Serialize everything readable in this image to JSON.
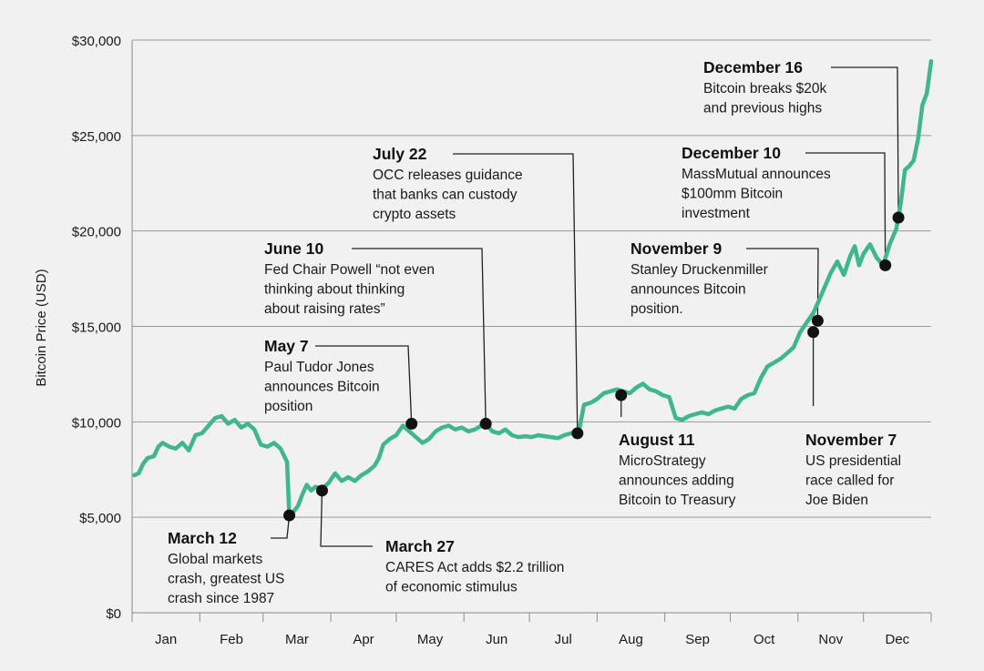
{
  "chart_data": {
    "type": "line",
    "ylabel": "Bitcoin Price (USD)",
    "ylim": [
      0,
      30000
    ],
    "yticks": [
      0,
      5000,
      10000,
      15000,
      20000,
      25000,
      30000
    ],
    "ytick_labels": [
      "$0",
      "$5,000",
      "$10,000",
      "$15,000",
      "$20,000",
      "$25,000",
      "$30,000"
    ],
    "xtick_labels": [
      "Jan",
      "Feb",
      "Mar",
      "Apr",
      "May",
      "Jun",
      "Jul",
      "Aug",
      "Sep",
      "Oct",
      "Nov",
      "Dec"
    ],
    "grid": true,
    "line_color": "#3fb68b",
    "series": [
      {
        "values": [
          [
            1,
            7200
          ],
          [
            3,
            7300
          ],
          [
            5,
            7800
          ],
          [
            7,
            8100
          ],
          [
            10,
            8200
          ],
          [
            12,
            8700
          ],
          [
            14,
            8900
          ],
          [
            17,
            8700
          ],
          [
            20,
            8600
          ],
          [
            23,
            8900
          ],
          [
            26,
            8500
          ],
          [
            29,
            9300
          ],
          [
            32,
            9400
          ],
          [
            35,
            9800
          ],
          [
            38,
            10200
          ],
          [
            41,
            10300
          ],
          [
            44,
            9900
          ],
          [
            47,
            10100
          ],
          [
            50,
            9700
          ],
          [
            53,
            9900
          ],
          [
            56,
            9600
          ],
          [
            59,
            8800
          ],
          [
            62,
            8700
          ],
          [
            65,
            8900
          ],
          [
            68,
            8600
          ],
          [
            71,
            7900
          ],
          [
            72,
            5100
          ],
          [
            74,
            5300
          ],
          [
            76,
            5600
          ],
          [
            78,
            6200
          ],
          [
            80,
            6700
          ],
          [
            82,
            6400
          ],
          [
            84,
            6600
          ],
          [
            87,
            6500
          ],
          [
            90,
            6800
          ],
          [
            93,
            7300
          ],
          [
            96,
            6900
          ],
          [
            99,
            7100
          ],
          [
            102,
            6900
          ],
          [
            105,
            7200
          ],
          [
            108,
            7400
          ],
          [
            111,
            7700
          ],
          [
            113,
            8100
          ],
          [
            115,
            8800
          ],
          [
            118,
            9100
          ],
          [
            121,
            9300
          ],
          [
            124,
            9800
          ],
          [
            127,
            9500
          ],
          [
            130,
            9200
          ],
          [
            133,
            8900
          ],
          [
            136,
            9100
          ],
          [
            139,
            9500
          ],
          [
            142,
            9700
          ],
          [
            145,
            9800
          ],
          [
            148,
            9600
          ],
          [
            151,
            9700
          ],
          [
            154,
            9500
          ],
          [
            157,
            9600
          ],
          [
            160,
            9800
          ],
          [
            162,
            9900
          ],
          [
            165,
            9500
          ],
          [
            168,
            9400
          ],
          [
            171,
            9600
          ],
          [
            174,
            9300
          ],
          [
            177,
            9200
          ],
          [
            180,
            9250
          ],
          [
            183,
            9200
          ],
          [
            186,
            9300
          ],
          [
            189,
            9250
          ],
          [
            192,
            9200
          ],
          [
            195,
            9150
          ],
          [
            198,
            9300
          ],
          [
            201,
            9400
          ],
          [
            204,
            9500
          ],
          [
            205,
            9700
          ],
          [
            207,
            10900
          ],
          [
            210,
            11000
          ],
          [
            213,
            11200
          ],
          [
            216,
            11500
          ],
          [
            219,
            11600
          ],
          [
            222,
            11700
          ],
          [
            225,
            11600
          ],
          [
            228,
            11500
          ],
          [
            231,
            11800
          ],
          [
            234,
            12000
          ],
          [
            237,
            11700
          ],
          [
            240,
            11600
          ],
          [
            243,
            11400
          ],
          [
            246,
            11300
          ],
          [
            249,
            10200
          ],
          [
            252,
            10100
          ],
          [
            255,
            10300
          ],
          [
            258,
            10400
          ],
          [
            261,
            10500
          ],
          [
            264,
            10400
          ],
          [
            267,
            10600
          ],
          [
            270,
            10700
          ],
          [
            273,
            10800
          ],
          [
            276,
            10700
          ],
          [
            279,
            11200
          ],
          [
            282,
            11400
          ],
          [
            285,
            11500
          ],
          [
            288,
            12300
          ],
          [
            291,
            12900
          ],
          [
            294,
            13100
          ],
          [
            297,
            13300
          ],
          [
            300,
            13600
          ],
          [
            303,
            13900
          ],
          [
            306,
            14700
          ],
          [
            309,
            15200
          ],
          [
            312,
            15700
          ],
          [
            314,
            16200
          ],
          [
            317,
            17000
          ],
          [
            320,
            17800
          ],
          [
            323,
            18400
          ],
          [
            326,
            17700
          ],
          [
            329,
            18700
          ],
          [
            331,
            19200
          ],
          [
            333,
            18200
          ],
          [
            335,
            18800
          ],
          [
            338,
            19300
          ],
          [
            341,
            18600
          ],
          [
            344,
            18200
          ],
          [
            347,
            19300
          ],
          [
            350,
            20100
          ],
          [
            352,
            21400
          ],
          [
            354,
            23200
          ],
          [
            356,
            23400
          ],
          [
            358,
            23700
          ],
          [
            360,
            24800
          ],
          [
            362,
            26600
          ],
          [
            364,
            27200
          ],
          [
            366,
            28900
          ]
        ]
      }
    ]
  },
  "annotations": [
    {
      "key": "march12",
      "title": "March 12",
      "lines": [
        "Global markets",
        "crash, greatest US",
        "crash since 1987"
      ],
      "day": 72,
      "price": 5100
    },
    {
      "key": "march27",
      "title": "March 27",
      "lines": [
        "CARES Act adds $2.2 trillion",
        "of economic stimulus"
      ],
      "day": 87,
      "price": 6400
    },
    {
      "key": "may7",
      "title": "May 7",
      "lines": [
        "Paul Tudor Jones",
        "announces Bitcoin",
        "position"
      ],
      "day": 128,
      "price": 9900
    },
    {
      "key": "june10",
      "title": "June 10",
      "lines": [
        "Fed Chair Powell “not even",
        "thinking about thinking",
        "about raising rates”"
      ],
      "day": 162,
      "price": 9900
    },
    {
      "key": "july22",
      "title": "July 22",
      "lines": [
        "OCC releases guidance",
        "that banks can custody",
        "crypto assets"
      ],
      "day": 204,
      "price": 9400
    },
    {
      "key": "august11",
      "title": "August 11",
      "lines": [
        "MicroStrategy",
        "announces adding",
        "Bitcoin to Treasury"
      ],
      "day": 224,
      "price": 11400
    },
    {
      "key": "november7",
      "title": "November 7",
      "lines": [
        "US presidential",
        "race called for",
        "Joe Biden"
      ],
      "day": 312,
      "price": 14700
    },
    {
      "key": "november9",
      "title": "November 9",
      "lines": [
        "Stanley Druckenmiller",
        "announces Bitcoin",
        "position."
      ],
      "day": 314,
      "price": 15300
    },
    {
      "key": "december10",
      "title": "December 10",
      "lines": [
        "MassMutual announces",
        "$100mm Bitcoin",
        "investment"
      ],
      "day": 345,
      "price": 18200
    },
    {
      "key": "december16",
      "title": "December 16",
      "lines": [
        "Bitcoin breaks $20k",
        "and previous highs"
      ],
      "day": 351,
      "price": 20700
    }
  ]
}
